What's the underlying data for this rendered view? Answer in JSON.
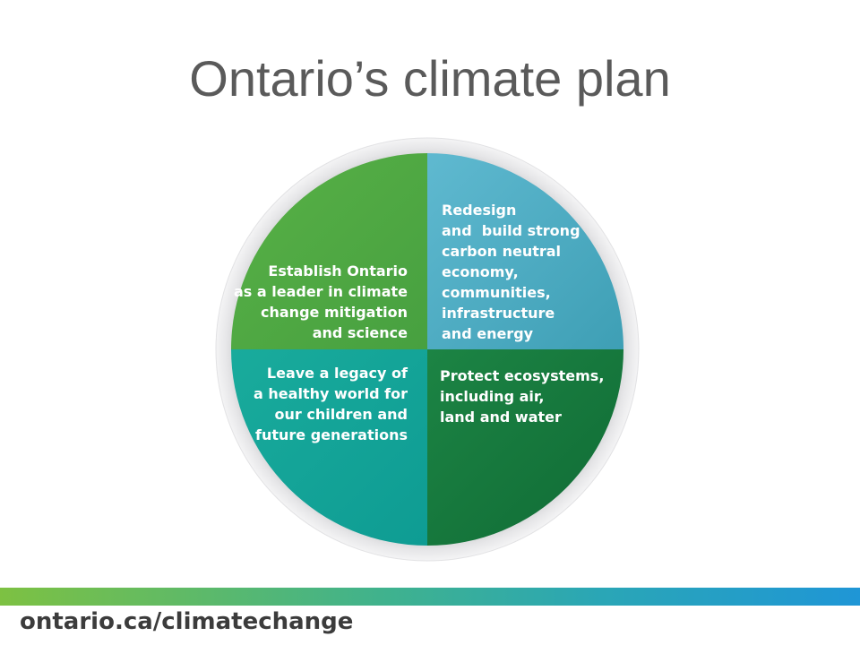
{
  "title": "Ontario’s climate plan",
  "quadrants": {
    "top_left": {
      "lines": [
        "Establish Ontario",
        "as a leader in climate",
        "change mitigation",
        "and science"
      ],
      "color": "#4ea843"
    },
    "top_right": {
      "lines": [
        "Redesign",
        "and  build strong",
        "carbon neutral",
        "economy,",
        "communities,",
        "infrastructure",
        "and energy"
      ],
      "color": "#4fb0c4"
    },
    "bottom_left": {
      "lines": [
        "Leave a legacy of",
        "a healthy world for",
        "our children and",
        "future generations"
      ],
      "color": "#12a39a"
    },
    "bottom_right": {
      "lines": [
        "Protect ecosystems,",
        "including air,",
        "land and water"
      ],
      "color": "#157a3e"
    }
  },
  "ring_color": "#d4d4d6",
  "footer": {
    "url": "ontario.ca/climatechange"
  }
}
